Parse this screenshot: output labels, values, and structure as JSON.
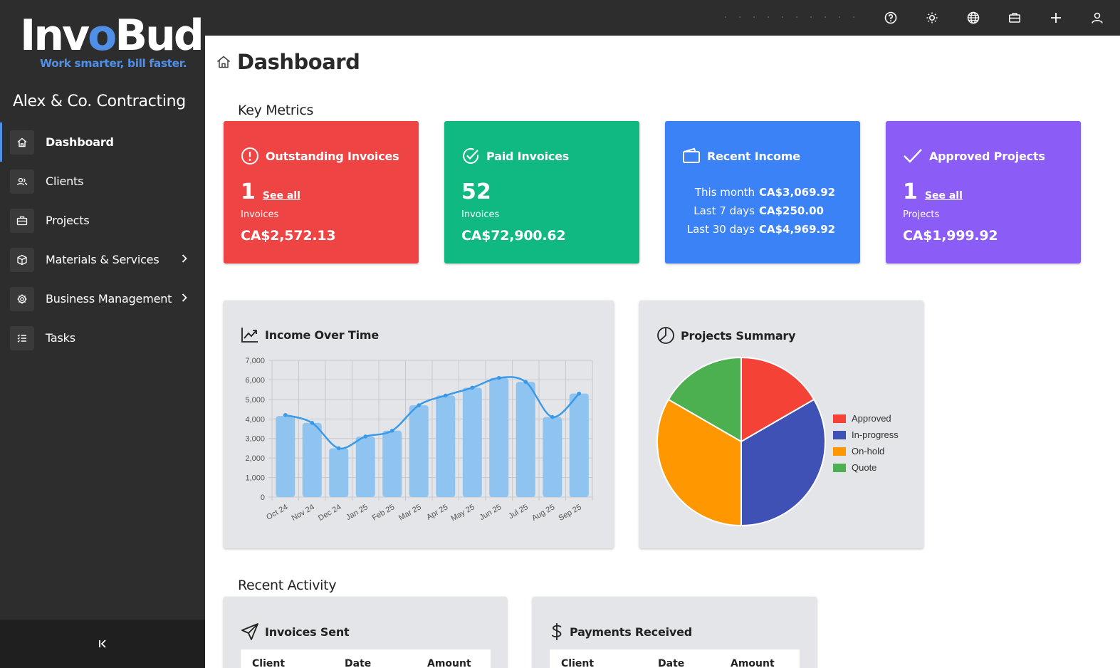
{
  "brand": {
    "logo_pre": "Inv",
    "logo_accent": "o",
    "logo_post": "Bud",
    "tagline": "Work smarter, bill faster."
  },
  "company": "Alex & Co. Contracting",
  "nav": [
    {
      "label": "Dashboard",
      "icon": "home-icon",
      "active": true
    },
    {
      "label": "Clients",
      "icon": "users-icon"
    },
    {
      "label": "Projects",
      "icon": "briefcase-icon"
    },
    {
      "label": "Materials & Services",
      "icon": "box-icon",
      "expandable": true
    },
    {
      "label": "Business Management",
      "icon": "gear-icon",
      "expandable": true
    },
    {
      "label": "Tasks",
      "icon": "list-icon"
    }
  ],
  "collapse_label": "K",
  "topbar_icons": [
    "help-icon",
    "theme-sun-icon",
    "language-globe-icon",
    "briefcase-icon",
    "add-plus-icon",
    "user-account-icon"
  ],
  "page": {
    "title": "Dashboard"
  },
  "sections": {
    "key_metrics": "Key Metrics",
    "recent_activity": "Recent Activity"
  },
  "cards": {
    "outstanding": {
      "title": "Outstanding Invoices",
      "count": "1",
      "see_all": "See all",
      "unit": "Invoices",
      "amount": "CA$2,572.13",
      "color": "#ef4444"
    },
    "paid": {
      "title": "Paid Invoices",
      "count": "52",
      "unit": "Invoices",
      "amount": "CA$72,900.62",
      "color": "#10b981"
    },
    "income": {
      "title": "Recent Income",
      "rows": [
        {
          "label": "This month",
          "value": "CA$3,069.92"
        },
        {
          "label": "Last 7 days",
          "value": "CA$250.00"
        },
        {
          "label": "Last 30 days",
          "value": "CA$4,969.92"
        }
      ],
      "color": "#3b82f6"
    },
    "approved": {
      "title": "Approved Projects",
      "count": "1",
      "see_all": "See all",
      "unit": "Projects",
      "amount": "CA$1,999.92",
      "color": "#8b5cf6"
    }
  },
  "panels": {
    "income_over_time": {
      "title": "Income Over Time"
    },
    "projects_summary": {
      "title": "Projects Summary"
    },
    "invoices_sent": {
      "title": "Invoices Sent",
      "columns": [
        "Client",
        "Date",
        "Amount"
      ]
    },
    "payments_received": {
      "title": "Payments Received",
      "columns": [
        "Client",
        "Date",
        "Amount"
      ]
    }
  },
  "chart_data": [
    {
      "type": "bar",
      "categories": [
        "Oct 24",
        "Nov 24",
        "Dec 24",
        "Jan 25",
        "Feb 25",
        "Mar 25",
        "Apr 25",
        "May 25",
        "Jun 25",
        "Jul 25",
        "Aug 25",
        "Sep 25"
      ],
      "series": [
        {
          "type": "bar",
          "values": [
            4150,
            3800,
            2500,
            3100,
            3400,
            4700,
            5200,
            5600,
            6100,
            5900,
            4100,
            5300
          ],
          "color": "#90c4f0"
        },
        {
          "type": "line",
          "values": [
            4200,
            3800,
            2500,
            3100,
            3400,
            4700,
            5200,
            5600,
            6100,
            5900,
            4100,
            5300
          ],
          "color": "#3b9ae8"
        }
      ],
      "ylim": [
        0,
        7000
      ],
      "yticks": [
        0,
        1000,
        2000,
        3000,
        4000,
        5000,
        6000,
        7000
      ],
      "ytick_labels": [
        "0",
        "1,000",
        "2,000",
        "3,000",
        "4,000",
        "5,000",
        "6,000",
        "7,000"
      ],
      "grid": true
    },
    {
      "type": "pie",
      "labels": [
        "Approved",
        "In-progress",
        "On-hold",
        "Quote"
      ],
      "values": [
        1,
        2,
        2,
        1
      ],
      "colors": [
        "#f44336",
        "#3f51b5",
        "#ff9800",
        "#4caf50"
      ],
      "legend": "right"
    }
  ]
}
